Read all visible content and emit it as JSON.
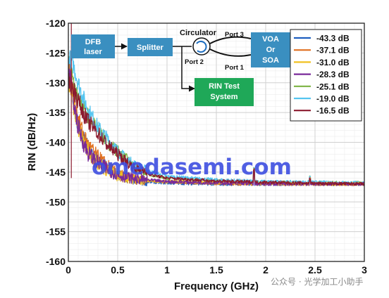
{
  "chart_data": {
    "type": "line",
    "xlabel": "Frequency (GHz)",
    "ylabel": "RIN (dB/Hz)",
    "xlim": [
      0,
      3
    ],
    "ylim": [
      -160,
      -120
    ],
    "xticks": [
      "0",
      "0.5",
      "1",
      "1.5",
      "2",
      "2.5",
      "3"
    ],
    "yticks": [
      "-120",
      "-125",
      "-130",
      "-135",
      "-140",
      "-145",
      "-150",
      "-155",
      "-160"
    ],
    "grid": true,
    "legend_position": "top-right",
    "series": [
      {
        "name": "-43.3 dB",
        "color": "#1f5fbf",
        "points": [
          [
            0.02,
            -128.5
          ],
          [
            0.05,
            -133
          ],
          [
            0.1,
            -137
          ],
          [
            0.15,
            -139.5
          ],
          [
            0.2,
            -141
          ],
          [
            0.3,
            -143
          ],
          [
            0.4,
            -144.5
          ],
          [
            0.5,
            -145.5
          ],
          [
            0.7,
            -146.5
          ],
          [
            1.0,
            -146.8
          ],
          [
            1.5,
            -147
          ],
          [
            2.0,
            -147
          ],
          [
            2.5,
            -147
          ],
          [
            3.0,
            -147
          ]
        ]
      },
      {
        "name": "-37.1 dB",
        "color": "#e07020",
        "points": [
          [
            0.02,
            -128
          ],
          [
            0.05,
            -132
          ],
          [
            0.1,
            -136
          ],
          [
            0.15,
            -138.5
          ],
          [
            0.2,
            -140.5
          ],
          [
            0.3,
            -142.5
          ],
          [
            0.4,
            -144
          ],
          [
            0.5,
            -145.5
          ],
          [
            0.7,
            -146.3
          ],
          [
            1.0,
            -146.6
          ],
          [
            1.5,
            -146.9
          ],
          [
            2.0,
            -147
          ],
          [
            2.5,
            -147
          ],
          [
            3.0,
            -147
          ]
        ]
      },
      {
        "name": "-31.0 dB",
        "color": "#f0c020",
        "points": [
          [
            0.02,
            -130
          ],
          [
            0.05,
            -134
          ],
          [
            0.1,
            -137.5
          ],
          [
            0.15,
            -140
          ],
          [
            0.2,
            -141.5
          ],
          [
            0.3,
            -143.5
          ],
          [
            0.4,
            -144.8
          ],
          [
            0.5,
            -145.5
          ],
          [
            0.7,
            -146.3
          ],
          [
            1.0,
            -146.6
          ],
          [
            1.5,
            -146.8
          ],
          [
            2.0,
            -146.9
          ],
          [
            2.5,
            -147
          ],
          [
            3.0,
            -147
          ]
        ]
      },
      {
        "name": "-28.3 dB",
        "color": "#7a2a9a",
        "points": [
          [
            0.02,
            -129
          ],
          [
            0.05,
            -133
          ],
          [
            0.1,
            -137.5
          ],
          [
            0.15,
            -140
          ],
          [
            0.2,
            -141.8
          ],
          [
            0.3,
            -143.5
          ],
          [
            0.4,
            -144.5
          ],
          [
            0.5,
            -145.5
          ],
          [
            0.7,
            -146.2
          ],
          [
            1.0,
            -146.6
          ],
          [
            1.5,
            -146.8
          ],
          [
            2.0,
            -147
          ],
          [
            2.5,
            -147
          ],
          [
            3.0,
            -147
          ]
        ]
      },
      {
        "name": "-25.1 dB",
        "color": "#7cb342",
        "points": [
          [
            0.02,
            -127
          ],
          [
            0.05,
            -130
          ],
          [
            0.1,
            -133
          ],
          [
            0.2,
            -135.5
          ],
          [
            0.3,
            -138
          ],
          [
            0.4,
            -140
          ],
          [
            0.5,
            -141.5
          ],
          [
            0.6,
            -143
          ],
          [
            0.7,
            -144.5
          ],
          [
            0.85,
            -145.5
          ],
          [
            1.0,
            -146
          ],
          [
            1.5,
            -146.5
          ],
          [
            2.0,
            -146.7
          ],
          [
            2.5,
            -146.8
          ],
          [
            3.0,
            -146.8
          ]
        ]
      },
      {
        "name": "-19.0 dB",
        "color": "#55c5f0",
        "points": [
          [
            0.02,
            -126
          ],
          [
            0.05,
            -127
          ],
          [
            0.1,
            -130
          ],
          [
            0.15,
            -132.5
          ],
          [
            0.2,
            -134.5
          ],
          [
            0.3,
            -137.5
          ],
          [
            0.4,
            -139.5
          ],
          [
            0.5,
            -141.5
          ],
          [
            0.6,
            -143
          ],
          [
            0.7,
            -144
          ],
          [
            0.85,
            -145
          ],
          [
            1.0,
            -145.7
          ],
          [
            1.5,
            -146.3
          ],
          [
            2.0,
            -146.6
          ],
          [
            2.5,
            -146.7
          ],
          [
            3.0,
            -146.8
          ]
        ]
      },
      {
        "name": "-16.5 dB",
        "color": "#8b1a2e",
        "points": [
          [
            0.02,
            -130
          ],
          [
            0.05,
            -131
          ],
          [
            0.1,
            -133
          ],
          [
            0.15,
            -135
          ],
          [
            0.2,
            -136.5
          ],
          [
            0.3,
            -138.5
          ],
          [
            0.4,
            -140.5
          ],
          [
            0.5,
            -142
          ],
          [
            0.6,
            -143.5
          ],
          [
            0.7,
            -144.5
          ],
          [
            0.85,
            -145.5
          ],
          [
            1.0,
            -146
          ],
          [
            1.5,
            -146.5
          ],
          [
            2.0,
            -146.7
          ],
          [
            2.5,
            -146.9
          ],
          [
            3.0,
            -147
          ]
        ]
      }
    ]
  },
  "inset": {
    "dfb": "DFB laser",
    "splitter": "Splitter",
    "circulator": "Circulator",
    "port1": "Port 1",
    "port2": "Port 2",
    "port3": "Port 3",
    "voa": "VOA Or SOA",
    "rin": "RIN Test System",
    "box_color": "#3a8fc0",
    "rin_color": "#1fa858"
  },
  "watermark": "omedasemi.com",
  "wechat_mark": "公众号 · 光学加工小助手"
}
